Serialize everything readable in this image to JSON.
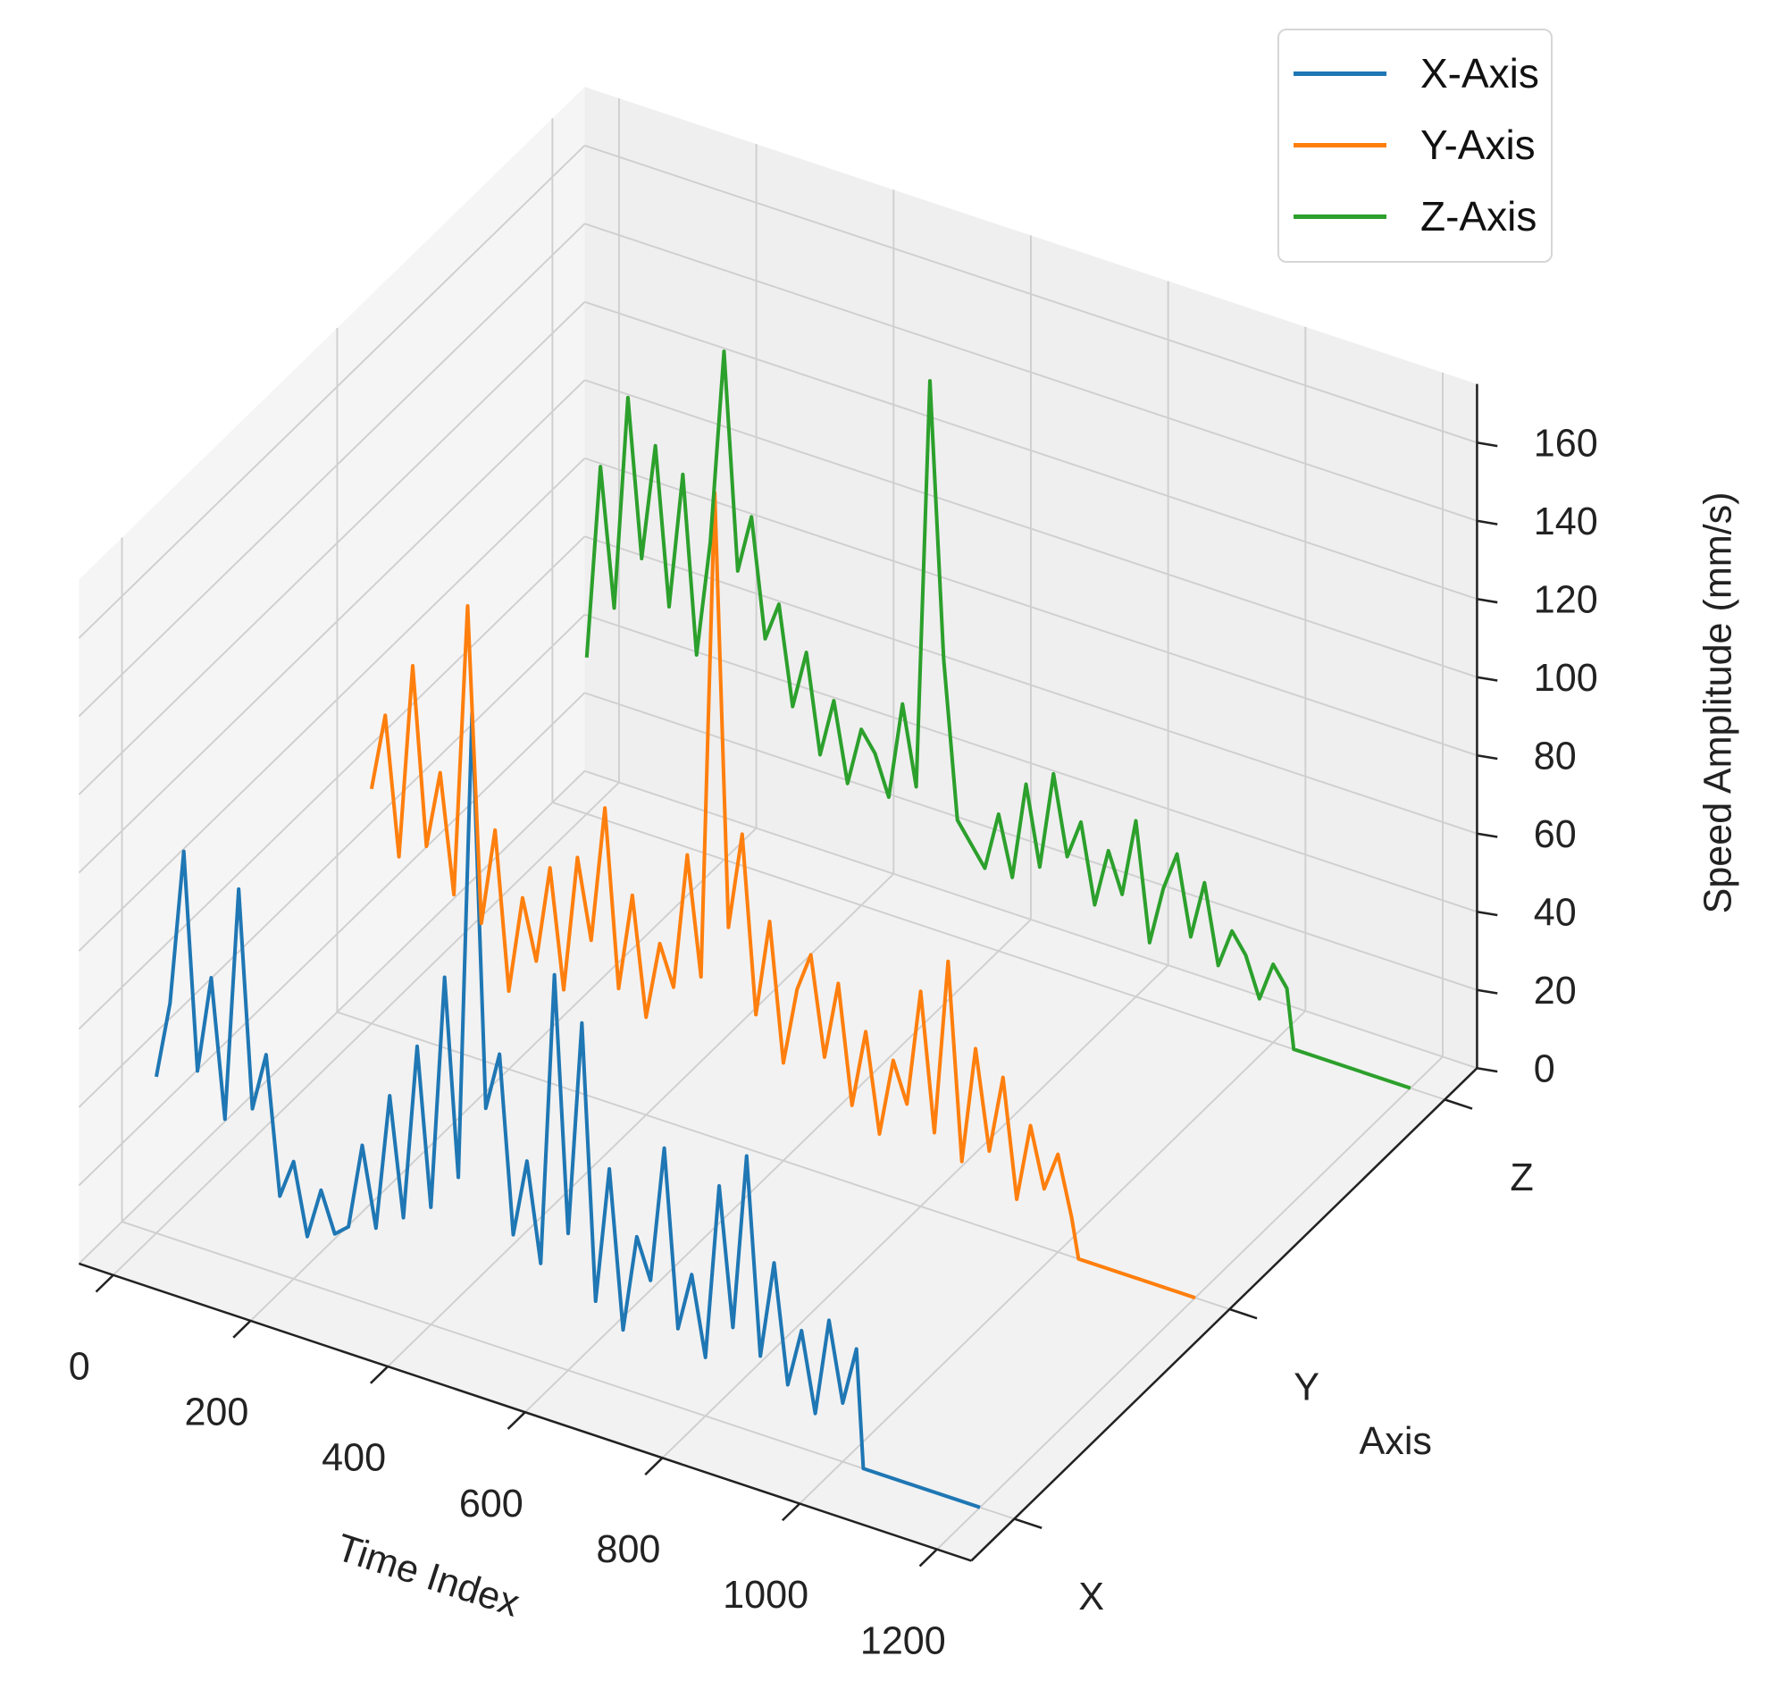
{
  "chart_data": {
    "type": "line",
    "projection": "3d",
    "xlabel": "Time Index",
    "ylabel": "Axis",
    "zlabel": "Speed Amplitude (mm/s)",
    "x_ticks": [
      "0",
      "200",
      "400",
      "600",
      "800",
      "1000",
      "1200"
    ],
    "y_ticks": [
      "X",
      "Y",
      "Z"
    ],
    "z_ticks": [
      "0",
      "20",
      "40",
      "60",
      "80",
      "100",
      "120",
      "140",
      "160"
    ],
    "xlim": [
      0,
      1250
    ],
    "zlim": [
      0,
      175
    ],
    "grid": true,
    "legend_position": "top-right",
    "x": [
      0,
      20,
      40,
      60,
      80,
      100,
      120,
      140,
      160,
      180,
      200,
      220,
      240,
      260,
      280,
      300,
      320,
      340,
      360,
      380,
      400,
      420,
      440,
      460,
      480,
      500,
      520,
      540,
      560,
      580,
      600,
      620,
      640,
      660,
      680,
      700,
      720,
      740,
      760,
      780,
      800,
      820,
      840,
      860,
      880,
      900,
      920,
      940,
      960,
      980,
      1000,
      1020,
      1030,
      1200
    ],
    "series": [
      {
        "name": "X-Axis",
        "color": "#1f77b4",
        "values": [
          40,
          60,
          100,
          45,
          70,
          35,
          95,
          40,
          55,
          20,
          30,
          12,
          25,
          15,
          18,
          40,
          20,
          55,
          25,
          70,
          30,
          90,
          40,
          160,
          60,
          75,
          30,
          50,
          25,
          100,
          35,
          90,
          20,
          55,
          15,
          40,
          30,
          65,
          20,
          35,
          15,
          60,
          25,
          70,
          20,
          45,
          15,
          30,
          10,
          35,
          15,
          30,
          0,
          0
        ]
      },
      {
        "name": "Y-Axis",
        "color": "#ff7f0e",
        "values": [
          60,
          80,
          45,
          95,
          50,
          70,
          40,
          115,
          35,
          60,
          20,
          45,
          30,
          55,
          25,
          60,
          40,
          75,
          30,
          55,
          25,
          45,
          35,
          70,
          40,
          165,
          55,
          80,
          35,
          60,
          25,
          45,
          55,
          30,
          50,
          20,
          40,
          15,
          35,
          25,
          55,
          20,
          65,
          15,
          45,
          20,
          40,
          10,
          30,
          15,
          25,
          10,
          0,
          0
        ]
      },
      {
        "name": "Z-Axis",
        "color": "#2ca02c",
        "values": [
          40,
          90,
          55,
          110,
          70,
          100,
          60,
          95,
          50,
          80,
          130,
          75,
          90,
          60,
          70,
          45,
          60,
          35,
          50,
          30,
          45,
          40,
          30,
          55,
          35,
          140,
          70,
          30,
          25,
          20,
          35,
          20,
          45,
          25,
          50,
          30,
          40,
          20,
          35,
          25,
          45,
          15,
          30,
          40,
          20,
          35,
          15,
          25,
          20,
          10,
          20,
          15,
          0,
          0
        ]
      }
    ]
  }
}
